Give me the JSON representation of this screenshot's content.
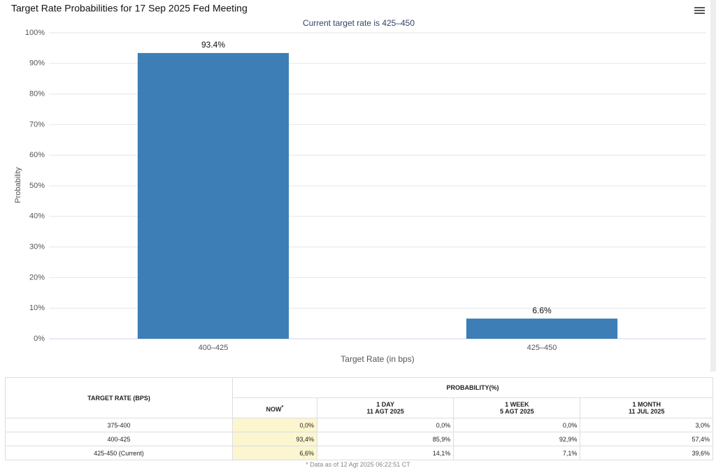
{
  "chart_data": {
    "type": "bar",
    "title": "Target Rate Probabilities for 17 Sep 2025 Fed Meeting",
    "subtitle": "Current target rate is 425–450",
    "y_label": "Probability",
    "x_label": "Target Rate (in bps)",
    "categories": [
      "400–425",
      "425–450"
    ],
    "values": [
      93.4,
      6.6
    ],
    "value_labels": [
      "93.4%",
      "6.6%"
    ],
    "color": "#3d7eb6",
    "ylim": [
      0,
      100
    ],
    "yticks": [
      {
        "value": 0,
        "label": "0%"
      },
      {
        "value": 10,
        "label": "10%"
      },
      {
        "value": 20,
        "label": "20%"
      },
      {
        "value": 30,
        "label": "30%"
      },
      {
        "value": 40,
        "label": "40%"
      },
      {
        "value": 50,
        "label": "50%"
      },
      {
        "value": 60,
        "label": "60%"
      },
      {
        "value": 70,
        "label": "70%"
      },
      {
        "value": 80,
        "label": "80%"
      },
      {
        "value": 90,
        "label": "90%"
      },
      {
        "value": 100,
        "label": "100%"
      }
    ],
    "grid": true
  },
  "table": {
    "row_header": "TARGET RATE (BPS)",
    "group_header": "PROBABILITY(%)",
    "now_label": "NOW",
    "now_note": "*",
    "columns": [
      {
        "label": "1 DAY",
        "date": "11 AGT 2025"
      },
      {
        "label": "1 WEEK",
        "date": "5 AGT 2025"
      },
      {
        "label": "1 MONTH",
        "date": "11 JUL 2025"
      }
    ],
    "rows": [
      [
        "375-400",
        "0,0%",
        "0,0%",
        "0,0%",
        "3,0%"
      ],
      [
        "400-425",
        "93,4%",
        "85,9%",
        "92,9%",
        "57,4%"
      ],
      [
        "425-450 (Current)",
        "6,6%",
        "14,1%",
        "7,1%",
        "39,6%"
      ]
    ],
    "footnote": "* Data as of 12 Agt 2025 06:22:51 CT"
  }
}
